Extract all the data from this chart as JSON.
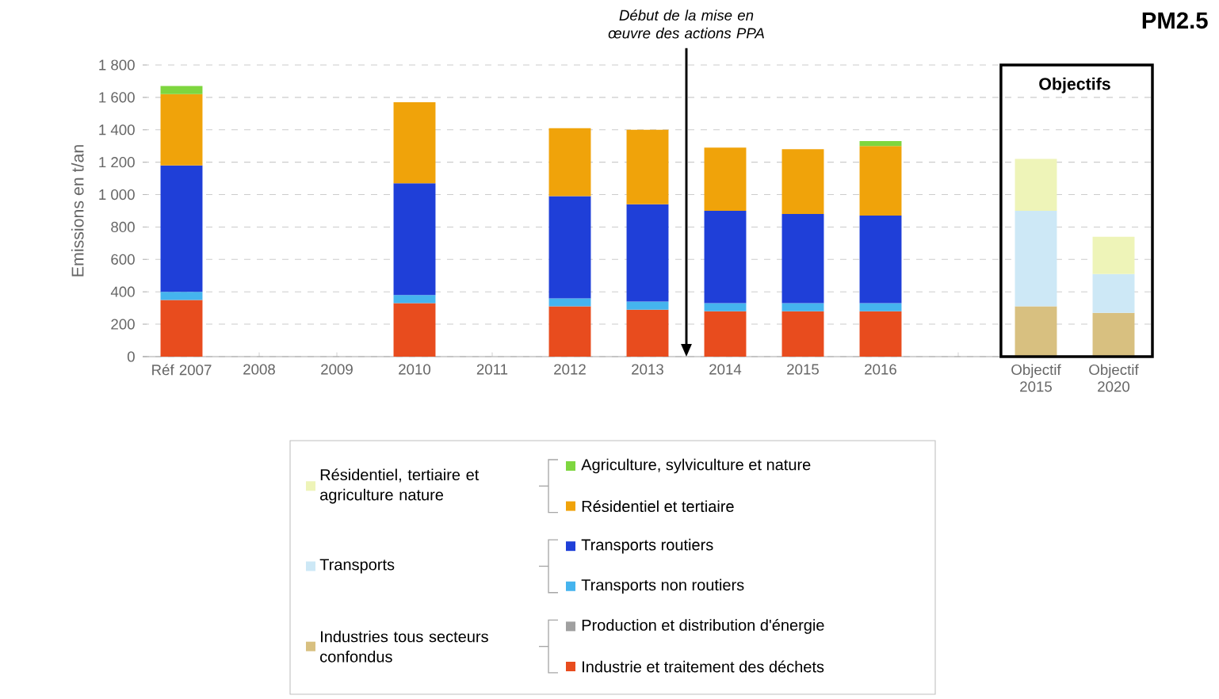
{
  "chart_data": {
    "type": "bar",
    "stacked": true,
    "title": "PM2.5",
    "ylabel": "Emissions en t/an",
    "categories": [
      "Réf 2007",
      "2008",
      "2009",
      "2010",
      "2011",
      "2012",
      "2013",
      "2014",
      "2015",
      "2016",
      null,
      "Objectif 2015",
      "Objectif 2020"
    ],
    "series": [
      {
        "name": "Industrie et traitement des déchets",
        "color": "#e84c1e",
        "values": [
          350,
          null,
          null,
          330,
          null,
          310,
          290,
          280,
          280,
          280,
          null,
          null,
          null
        ]
      },
      {
        "name": "Production et distribution d'énergie",
        "color": "#a0a0a0",
        "values": [
          null,
          null,
          null,
          null,
          null,
          null,
          null,
          null,
          null,
          null,
          null,
          null,
          null
        ]
      },
      {
        "name": "Transports non routiers",
        "color": "#45b4ee",
        "values": [
          50,
          null,
          null,
          50,
          null,
          50,
          50,
          50,
          50,
          50,
          null,
          null,
          null
        ]
      },
      {
        "name": "Transports routiers",
        "color": "#1f3fd8",
        "values": [
          780,
          null,
          null,
          690,
          null,
          630,
          600,
          570,
          550,
          540,
          null,
          null,
          null
        ]
      },
      {
        "name": "Résidentiel et tertiaire",
        "color": "#f0a30a",
        "values": [
          440,
          null,
          null,
          500,
          null,
          420,
          460,
          390,
          400,
          430,
          null,
          null,
          null
        ]
      },
      {
        "name": "Agriculture, sylviculture et nature",
        "color": "#7ed63f",
        "values": [
          50,
          null,
          null,
          null,
          null,
          null,
          null,
          null,
          null,
          30,
          null,
          null,
          null
        ]
      },
      {
        "name": "Industries tous secteurs confondus",
        "color": "#d8c080",
        "values": [
          null,
          null,
          null,
          null,
          null,
          null,
          null,
          null,
          null,
          null,
          null,
          310,
          270
        ]
      },
      {
        "name": "Transports",
        "color": "#cde8f6",
        "values": [
          null,
          null,
          null,
          null,
          null,
          null,
          null,
          null,
          null,
          null,
          null,
          590,
          240
        ]
      },
      {
        "name": "Résidentiel, tertiaire et agriculture nature",
        "color": "#eef4b8",
        "values": [
          null,
          null,
          null,
          null,
          null,
          null,
          null,
          null,
          null,
          null,
          null,
          320,
          230
        ]
      }
    ],
    "ylim": [
      0,
      1800
    ],
    "yticks": [
      0,
      200,
      400,
      600,
      800,
      {
        "value": 1000,
        "label": "1 000"
      },
      {
        "value": 1200,
        "label": "1 200"
      },
      {
        "value": 1400,
        "label": "1 400"
      },
      {
        "value": 1600,
        "label": "1 600"
      },
      {
        "value": 1800,
        "label": "1 800"
      }
    ],
    "grid": "y",
    "legend": "bottom",
    "annotations": [
      "Début de la mise en œuvre des actions PPA",
      "Objectifs"
    ]
  }
}
